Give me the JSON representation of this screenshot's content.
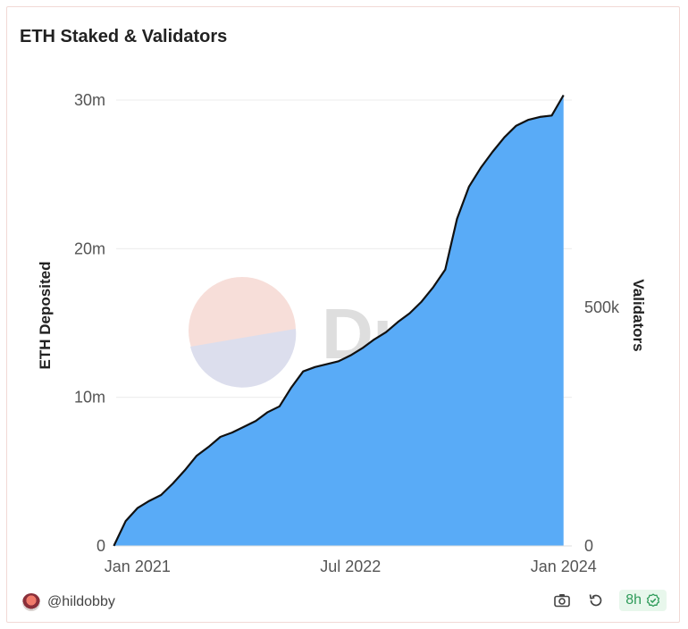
{
  "card": {
    "title": "ETH Staked & Validators"
  },
  "watermark": {
    "text": "Dune"
  },
  "footer": {
    "author": "@hildobby",
    "refresh_badge": "8h",
    "icons": [
      "camera-icon",
      "refresh-icon",
      "check-circle-icon"
    ]
  },
  "colors": {
    "area": "#59abf7",
    "line": "#111111",
    "badge_text": "#2f9b5a"
  },
  "chart_data": {
    "type": "area",
    "title": "ETH Staked & Validators",
    "xlabel": "",
    "ylabel": "ETH Deposited",
    "y2label": "Validators",
    "x_ticks": [
      "Jan 2021",
      "Jul 2022",
      "Jan 2024"
    ],
    "y_ticks": [
      "0",
      "10m",
      "20m",
      "30m"
    ],
    "y2_ticks": [
      "0",
      "500k"
    ],
    "xlim": [
      "2020-11",
      "2024-02"
    ],
    "ylim": [
      0,
      30000000
    ],
    "series": [
      {
        "name": "ETH Deposited",
        "x": [
          "2020-11",
          "2020-12",
          "2021-01",
          "2021-02",
          "2021-03",
          "2021-04",
          "2021-05",
          "2021-06",
          "2021-07",
          "2021-08",
          "2021-09",
          "2021-10",
          "2021-11",
          "2021-12",
          "2022-01",
          "2022-02",
          "2022-03",
          "2022-04",
          "2022-05",
          "2022-06",
          "2022-07",
          "2022-08",
          "2022-09",
          "2022-10",
          "2022-11",
          "2022-12",
          "2023-01",
          "2023-02",
          "2023-03",
          "2023-04",
          "2023-05",
          "2023-06",
          "2023-07",
          "2023-08",
          "2023-09",
          "2023-10",
          "2023-11",
          "2023-12",
          "2024-01"
        ],
        "values": [
          0,
          1700000,
          2600000,
          3100000,
          3500000,
          4300000,
          5200000,
          6200000,
          6800000,
          7500000,
          7800000,
          8200000,
          8600000,
          9200000,
          9600000,
          10900000,
          12000000,
          12300000,
          12500000,
          12700000,
          13100000,
          13600000,
          14200000,
          14700000,
          15400000,
          16000000,
          16800000,
          17800000,
          19000000,
          22500000,
          24700000,
          26000000,
          27100000,
          28100000,
          28900000,
          29300000,
          29500000,
          29600000,
          31000000
        ]
      }
    ]
  }
}
